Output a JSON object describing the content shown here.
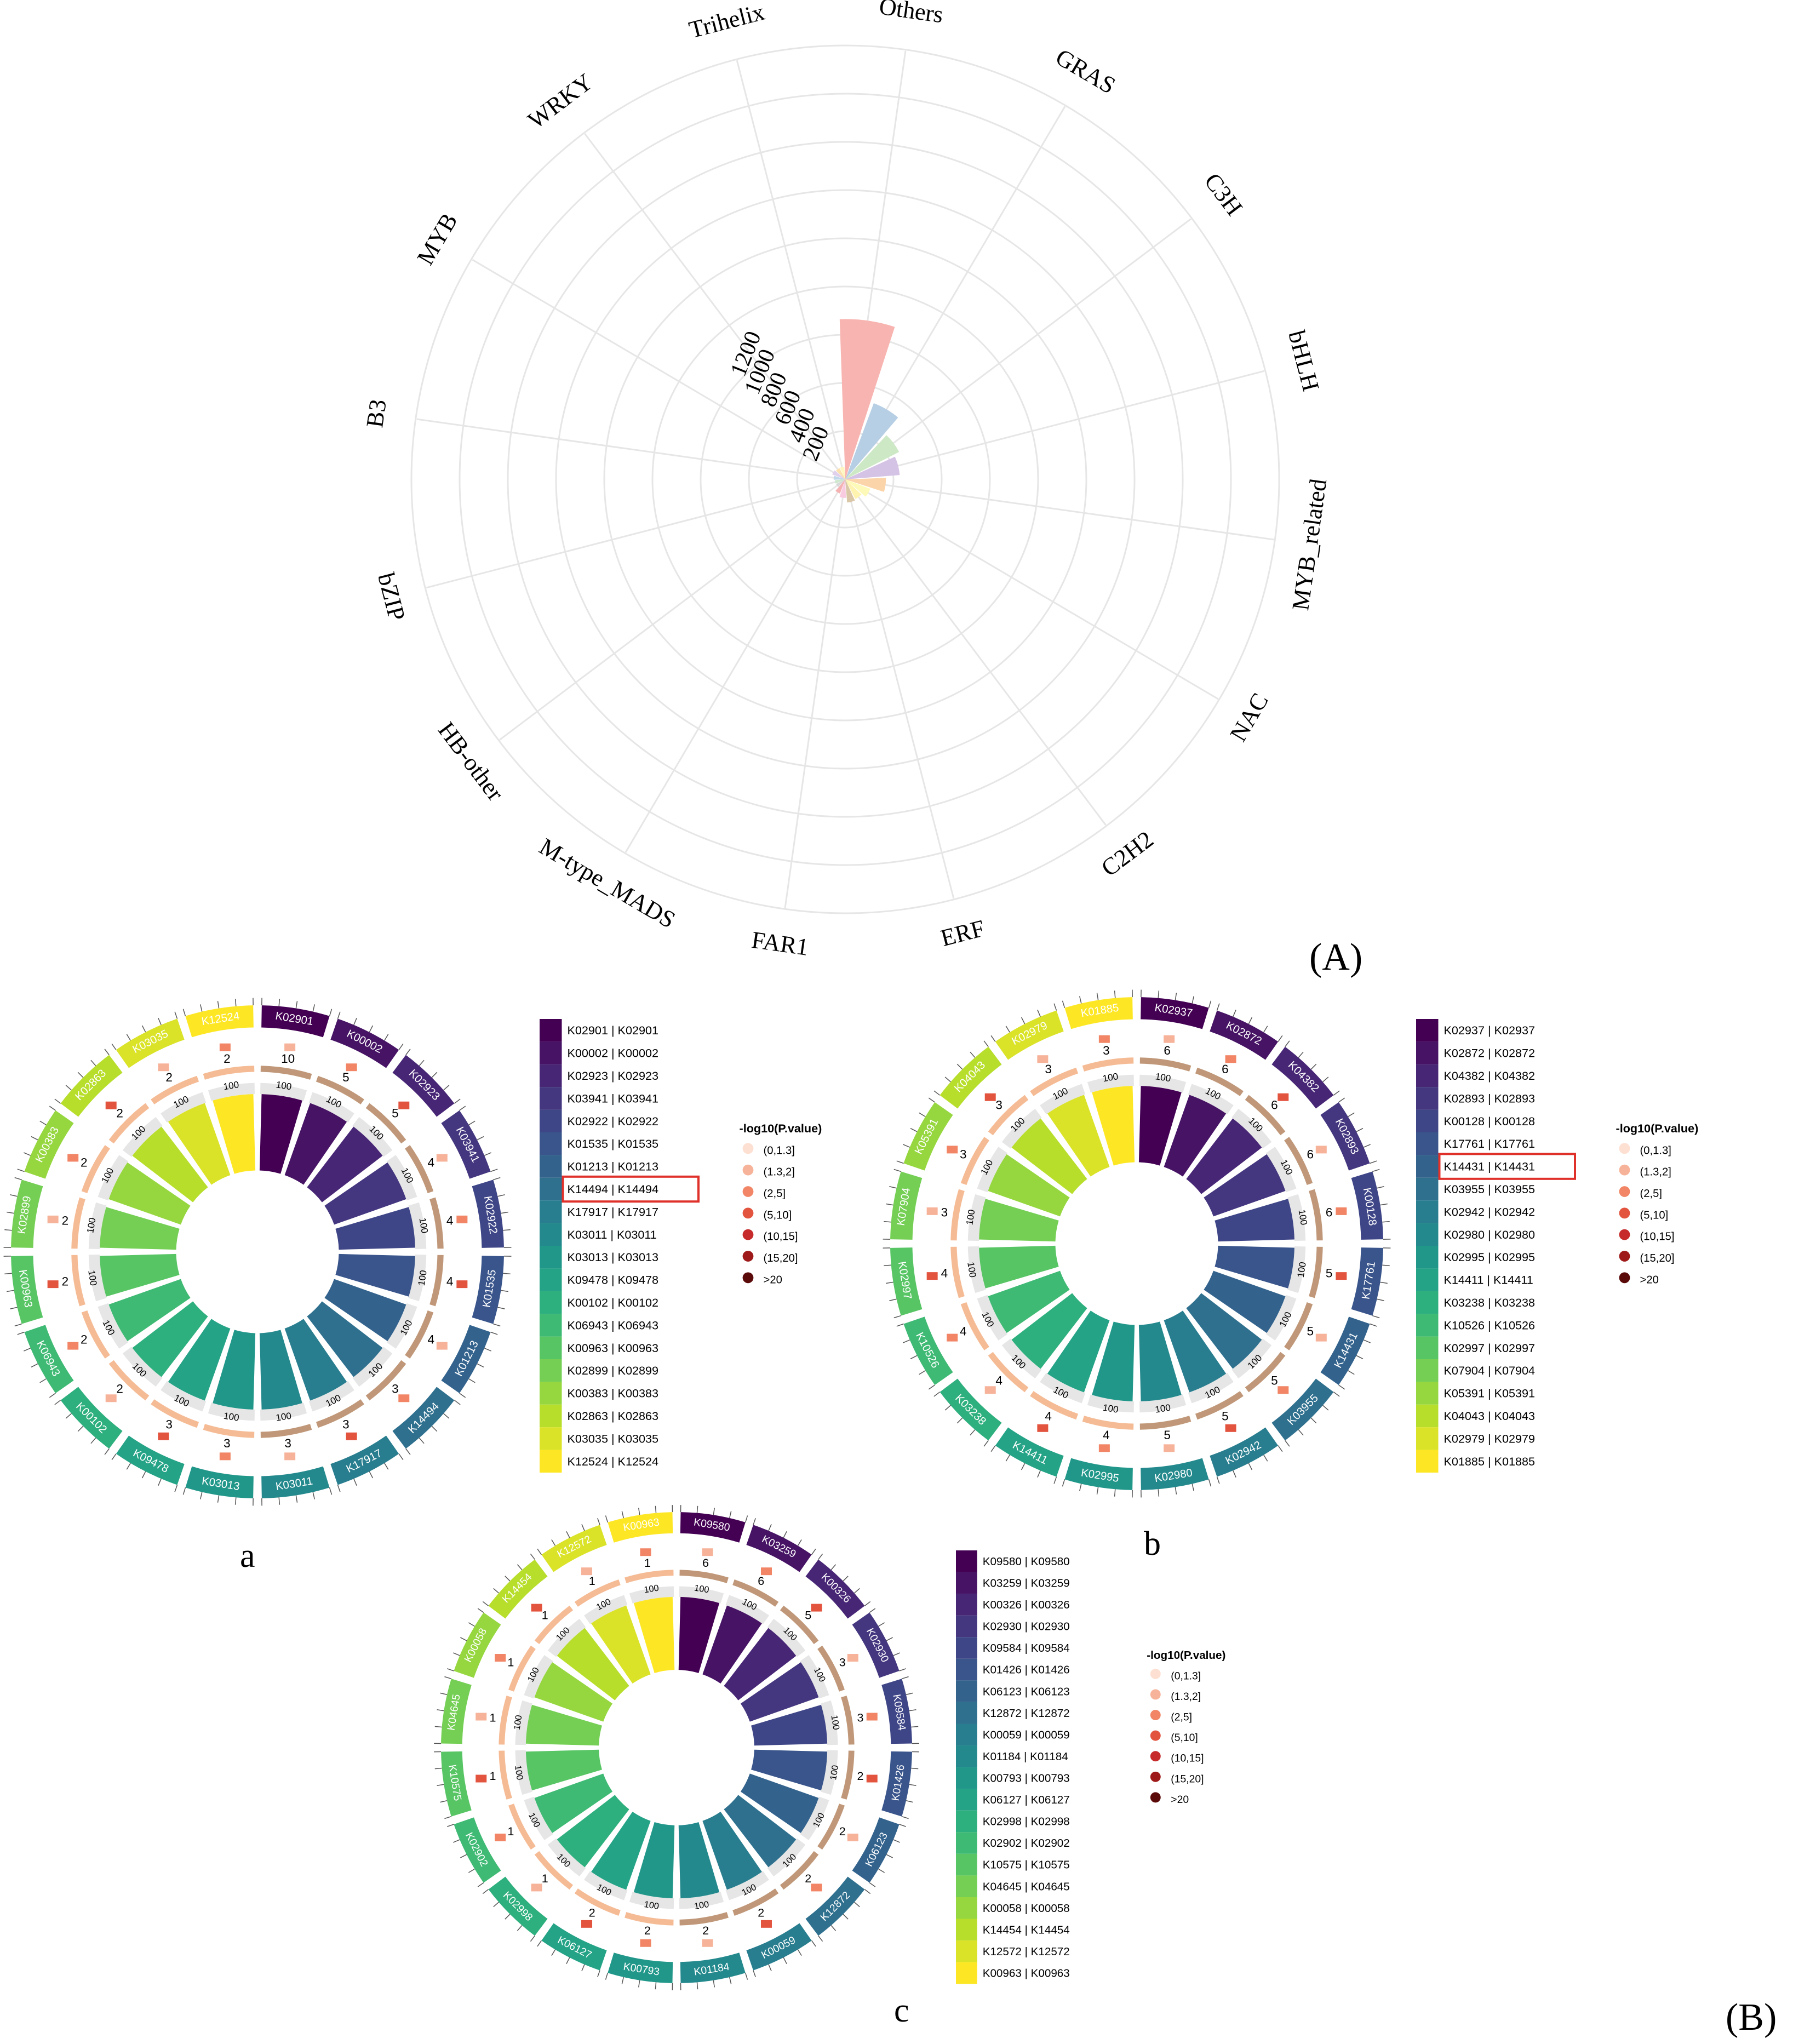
{
  "figure_labels": {
    "A": "(A)",
    "B": "(B)",
    "a": "a",
    "b": "b",
    "c": "c"
  },
  "chart_data": [
    {
      "id": "A",
      "type": "polar-bar",
      "title": "",
      "radial_ticks": [
        200,
        400,
        600,
        800,
        1000,
        1200
      ],
      "categories": [
        "Others",
        "GRAS",
        "C3H",
        "bHLH",
        "MYB_related",
        "NAC",
        "C2H2",
        "ERF",
        "FAR1",
        "M-type_MADS",
        "HB-other",
        "bZIP",
        "B3",
        "MYB",
        "WRKY",
        "Trihelix"
      ],
      "values": [
        1380,
        700,
        520,
        470,
        350,
        230,
        190,
        200,
        160,
        130,
        90,
        90,
        100,
        120,
        110,
        110
      ],
      "colors": [
        "#f8b4b0",
        "#b7cfe4",
        "#cde8c5",
        "#d5c3e5",
        "#fbd4a9",
        "#fdfab9",
        "#fff3b0",
        "#d9c7a8",
        "#f8cbe0",
        "#f4b2b2",
        "#d8d8d8",
        "#cde8cd",
        "#c0d8ea",
        "#e0d0ec",
        "#fbe1b0",
        "#fff7c0"
      ]
    },
    {
      "id": "a",
      "type": "circos-enrichment",
      "legend_title": "-log10(P.value)",
      "pvalue_bins": [
        "(0,1.3]",
        "(1.3,2]",
        "(2,5]",
        "(5,10]",
        "(10,15]",
        "(15,20]",
        ">20"
      ],
      "terms": [
        "K02901 | K02901",
        "K00002 | K00002",
        "K02923 | K02923",
        "K03941 | K03941",
        "K02922 | K02922",
        "K01535 | K01535",
        "K01213 | K01213",
        "K14494 | K14494",
        "K17917 | K17917",
        "K03011 | K03011",
        "K03013 | K03013",
        "K09478 | K09478",
        "K00102 | K00102",
        "K06943 | K06943",
        "K00963 | K00963",
        "K02899 | K02899",
        "K00383 | K00383",
        "K02863 | K02863",
        "K03035 | K03035",
        "K12524 | K12524"
      ],
      "counts": [
        10,
        5,
        5,
        4,
        4,
        4,
        4,
        3,
        3,
        3,
        3,
        3,
        2,
        2,
        2,
        2,
        2,
        2,
        2,
        2
      ],
      "rich_factor": [
        100,
        100,
        100,
        100,
        100,
        100,
        100,
        100,
        100,
        100,
        100,
        100,
        100,
        100,
        100,
        100,
        100,
        100,
        100,
        100
      ],
      "highlighted": "K14494 | K14494"
    },
    {
      "id": "b",
      "type": "circos-enrichment",
      "legend_title": "-log10(P.value)",
      "pvalue_bins": [
        "(0,1.3]",
        "(1.3,2]",
        "(2,5]",
        "(5,10]",
        "(10,15]",
        "(15,20]",
        ">20"
      ],
      "terms": [
        "K02937 | K02937",
        "K02872 | K02872",
        "K04382 | K04382",
        "K02893 | K02893",
        "K00128 | K00128",
        "K17761 | K17761",
        "K14431 | K14431",
        "K03955 | K03955",
        "K02942 | K02942",
        "K02980 | K02980",
        "K02995 | K02995",
        "K14411 | K14411",
        "K03238 | K03238",
        "K10526 | K10526",
        "K02997 | K02997",
        "K07904 | K07904",
        "K05391 | K05391",
        "K04043 | K04043",
        "K02979 | K02979",
        "K01885 | K01885"
      ],
      "counts": [
        6,
        6,
        6,
        6,
        6,
        5,
        5,
        5,
        5,
        5,
        4,
        4,
        4,
        4,
        4,
        3,
        3,
        3,
        3,
        3
      ],
      "rich_factor": [
        100,
        100,
        100,
        100,
        100,
        100,
        100,
        100,
        100,
        100,
        100,
        100,
        100,
        100,
        100,
        100,
        100,
        100,
        100,
        100
      ],
      "highlighted": "K14431 | K14431"
    },
    {
      "id": "c",
      "type": "circos-enrichment",
      "legend_title": "-log10(P.value)",
      "pvalue_bins": [
        "(0,1.3]",
        "(1.3,2]",
        "(2,5]",
        "(5,10]",
        "(10,15]",
        "(15,20]",
        ">20"
      ],
      "terms": [
        "K09580 | K09580",
        "K03259 | K03259",
        "K00326 | K00326",
        "K02930 | K02930",
        "K09584 | K09584",
        "K01426 | K01426",
        "K06123 | K06123",
        "K12872 | K12872",
        "K00059 | K00059",
        "K01184 | K01184",
        "K00793 | K00793",
        "K06127 | K06127",
        "K02998 | K02998",
        "K02902 | K02902",
        "K10575 | K10575",
        "K04645 | K04645",
        "K00058 | K00058",
        "K14454 | K14454",
        "K12572 | K12572",
        "K00963 | K00963"
      ],
      "counts": [
        6,
        6,
        5,
        3,
        3,
        2,
        2,
        2,
        2,
        2,
        2,
        2,
        1,
        1,
        1,
        1,
        1,
        1,
        1,
        1
      ],
      "rich_factor": [
        100,
        100,
        100,
        100,
        100,
        100,
        100,
        100,
        100,
        100,
        100,
        100,
        100,
        100,
        100,
        100,
        100,
        100,
        100,
        100
      ],
      "highlighted": ""
    }
  ]
}
